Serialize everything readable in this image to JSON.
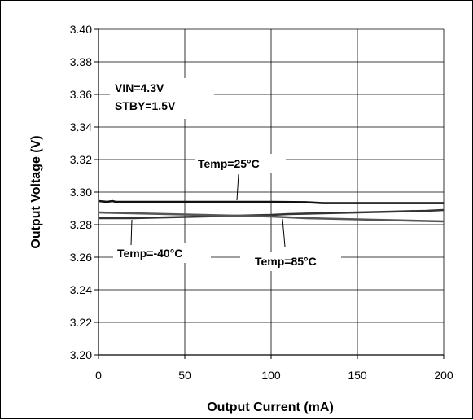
{
  "chart_data": {
    "type": "line",
    "xlabel": "Output Current (mA)",
    "ylabel": "Output Voltage (V)",
    "xlim": [
      0,
      200
    ],
    "ylim": [
      3.2,
      3.4
    ],
    "xticks": [
      0,
      50,
      100,
      150,
      200
    ],
    "yticks": [
      3.2,
      3.22,
      3.24,
      3.26,
      3.28,
      3.3,
      3.32,
      3.34,
      3.36,
      3.38,
      3.4
    ],
    "grid": true,
    "conditions": [
      "VIN=4.3V",
      "STBY=1.5V"
    ],
    "series": [
      {
        "name": "Temp=25°C",
        "color": "#111111",
        "x": [
          0,
          5,
          8,
          10,
          20,
          50,
          100,
          120,
          130,
          150,
          200
        ],
        "y": [
          3.2945,
          3.294,
          3.2945,
          3.294,
          3.294,
          3.294,
          3.294,
          3.2938,
          3.2932,
          3.2932,
          3.2932
        ]
      },
      {
        "name": "Temp=-40°C",
        "color": "#333333",
        "x": [
          0,
          20,
          40,
          60,
          80,
          100,
          110,
          130,
          150,
          170,
          190,
          200
        ],
        "y": [
          3.284,
          3.284,
          3.2845,
          3.285,
          3.2855,
          3.286,
          3.2865,
          3.287,
          3.2875,
          3.288,
          3.2885,
          3.289
        ]
      },
      {
        "name": "Temp=85°C",
        "color": "#555555",
        "x": [
          0,
          20,
          40,
          60,
          80,
          100,
          120,
          140,
          160,
          180,
          200
        ],
        "y": [
          3.2875,
          3.287,
          3.2865,
          3.286,
          3.2855,
          3.285,
          3.284,
          3.2835,
          3.283,
          3.2825,
          3.282
        ]
      }
    ]
  }
}
